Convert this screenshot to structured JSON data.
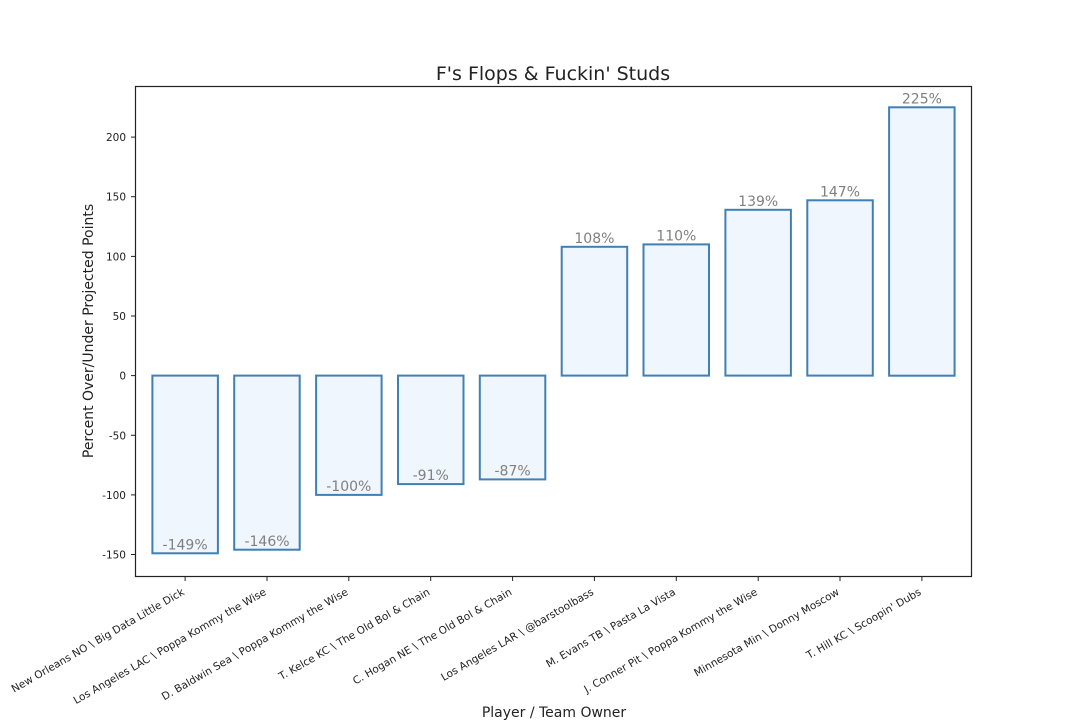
{
  "chart_data": {
    "type": "bar",
    "title": "F's Flops & Fuckin' Studs",
    "xlabel": "Player / Team Owner",
    "ylabel": "Percent Over/Under Projected Points",
    "ylim": [
      -168,
      242
    ],
    "yticks": [
      -150,
      -100,
      -50,
      0,
      50,
      100,
      150,
      200
    ],
    "categories": [
      "New Orleans NO \\ Big Data Little Dick",
      "Los Angeles LAC \\ Poppa Kommy the Wise",
      "D. Baldwin Sea \\ Poppa Kommy the Wise",
      "T. Kelce KC \\ The Old Bol & Chain",
      "C. Hogan NE \\ The Old Bol & Chain",
      "Los Angeles LAR \\ @barstoolbass",
      "M. Evans TB \\ Pasta La Vista",
      "J. Conner Pit \\ Poppa Kommy the Wise",
      "Minnesota Min \\ Donny Moscow",
      "T. Hill KC \\ Scoopin' Dubs"
    ],
    "values": [
      -149,
      -146,
      -100,
      -91,
      -87,
      108,
      110,
      139,
      147,
      225
    ],
    "data_labels": [
      "-149%",
      "-146%",
      "-100%",
      "-91%",
      "-87%",
      "108%",
      "110%",
      "139%",
      "147%",
      "225%"
    ],
    "grid": false,
    "bar_fill": "#f0f6fd",
    "bar_edge": "#3f80b5",
    "label_color": "#808080"
  }
}
